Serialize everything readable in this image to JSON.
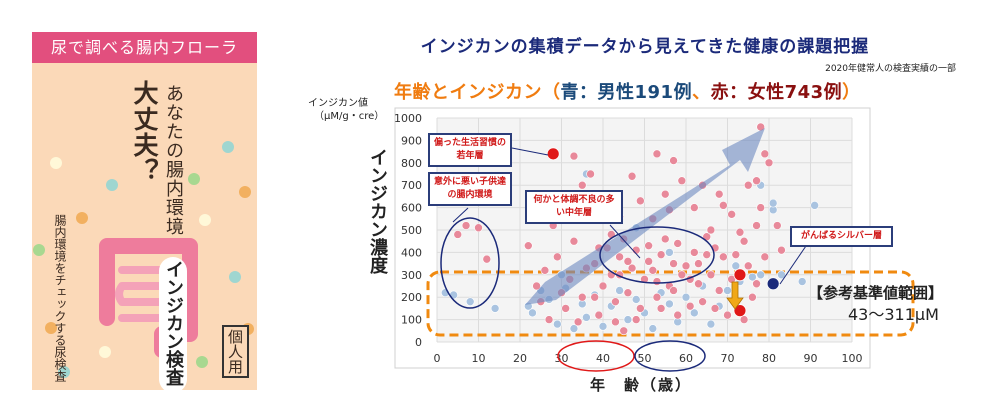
{
  "package": {
    "header": "尿で調べる腸内フローラ",
    "question_main": "大丈夫？",
    "question_sub": "あなたの腸内環境",
    "side_text": "腸内環境をチェックする尿検査",
    "product_name": "インジカン検査",
    "badge": "個人用",
    "colors": {
      "header": "#e24f7e",
      "body": "#fbd9b8",
      "intestine": "#ee7c9c"
    }
  },
  "main_title": "インジカンの集積データから見えてきた健康の課題把握",
  "note": "2020年健常人の検査実績の一部",
  "subtitle": {
    "prefix": "年齢とインジカン（",
    "male": "青：男性191例",
    "sep": "、",
    "female": "赤：女性743例",
    "suffix": "）"
  },
  "reference": {
    "label": "【参考基準値範囲】",
    "range": "43〜311μM"
  },
  "annotations": {
    "young": "偏った生活習慣の若年層",
    "children": "意外に悪い子供達の腸内環境",
    "middle": "何かと体調不良の多い中年層",
    "silver": "がんばるシルバー層"
  },
  "chart_data": {
    "type": "scatter",
    "title": "年齢とインジカン（青：男性191例、赤：女性743例）",
    "xlabel": "年　齢（歳）",
    "ylabel": "インジカン濃度",
    "ylabel_unit_line1": "インジカン値",
    "ylabel_unit_line2": "（μM/g・cre）",
    "xlim": [
      0,
      100
    ],
    "ylim": [
      0,
      1000
    ],
    "x_ticks": [
      "0",
      "10",
      "20",
      "30",
      "40",
      "50",
      "60",
      "70",
      "80",
      "90",
      "100"
    ],
    "y_ticks": [
      "0",
      "100",
      "200",
      "300",
      "400",
      "500",
      "600",
      "700",
      "800",
      "900",
      "1000"
    ],
    "grid": true,
    "reference_range": [
      43,
      311
    ],
    "series": [
      {
        "name": "女性",
        "color": "#e8899a",
        "points": [
          [
            5,
            480
          ],
          [
            7,
            520
          ],
          [
            10,
            510
          ],
          [
            12,
            370
          ],
          [
            22,
            430
          ],
          [
            24,
            250
          ],
          [
            25,
            180
          ],
          [
            26,
            320
          ],
          [
            27,
            100
          ],
          [
            28,
            520
          ],
          [
            29,
            380
          ],
          [
            30,
            220
          ],
          [
            31,
            150
          ],
          [
            32,
            280
          ],
          [
            33,
            450
          ],
          [
            34,
            90
          ],
          [
            35,
            200
          ],
          [
            33,
            830
          ],
          [
            35,
            700
          ],
          [
            37,
            750
          ],
          [
            38,
            350
          ],
          [
            39,
            120
          ],
          [
            40,
            250
          ],
          [
            41,
            420
          ],
          [
            42,
            300
          ],
          [
            43,
            180
          ],
          [
            44,
            380
          ],
          [
            45,
            460
          ],
          [
            46,
            220
          ],
          [
            47,
            330
          ],
          [
            48,
            410
          ],
          [
            49,
            150
          ],
          [
            50,
            280
          ],
          [
            41,
            650
          ],
          [
            44,
            560
          ],
          [
            47,
            740
          ],
          [
            49,
            630
          ],
          [
            46,
            360
          ],
          [
            43,
            90
          ],
          [
            45,
            50
          ],
          [
            42,
            480
          ],
          [
            48,
            100
          ],
          [
            51,
            430
          ],
          [
            52,
            320
          ],
          [
            53,
            200
          ],
          [
            54,
            390
          ],
          [
            55,
            460
          ],
          [
            56,
            250
          ],
          [
            57,
            350
          ],
          [
            58,
            120
          ],
          [
            59,
            300
          ],
          [
            52,
            550
          ],
          [
            55,
            660
          ],
          [
            57,
            810
          ],
          [
            59,
            720
          ],
          [
            53,
            840
          ],
          [
            56,
            590
          ],
          [
            58,
            440
          ],
          [
            61,
            280
          ],
          [
            62,
            400
          ],
          [
            63,
            350
          ],
          [
            64,
            180
          ],
          [
            65,
            470
          ],
          [
            66,
            300
          ],
          [
            67,
            420
          ],
          [
            68,
            230
          ],
          [
            69,
            380
          ],
          [
            70,
            120
          ],
          [
            62,
            600
          ],
          [
            64,
            700
          ],
          [
            66,
            500
          ],
          [
            68,
            660
          ],
          [
            69,
            610
          ],
          [
            61,
            160
          ],
          [
            71,
            280
          ],
          [
            72,
            390
          ],
          [
            74,
            450
          ],
          [
            75,
            340
          ],
          [
            76,
            200
          ],
          [
            77,
            520
          ],
          [
            78,
            600
          ],
          [
            79,
            380
          ],
          [
            75,
            700
          ],
          [
            77,
            720
          ],
          [
            78,
            960
          ],
          [
            79,
            840
          ],
          [
            80,
            800
          ],
          [
            82,
            520
          ],
          [
            83,
            410
          ],
          [
            74,
            100
          ],
          [
            77,
            260
          ],
          [
            71,
            570
          ],
          [
            73,
            490
          ],
          [
            36,
            330
          ],
          [
            39,
            420
          ],
          [
            44,
            300
          ],
          [
            51,
            360
          ],
          [
            54,
            150
          ],
          [
            60,
            340
          ],
          [
            63,
            260
          ],
          [
            67,
            150
          ],
          [
            38,
            200
          ],
          [
            53,
            270
          ],
          [
            57,
            230
          ],
          [
            65,
            390
          ]
        ]
      },
      {
        "name": "男性",
        "color": "#a9c3e0",
        "points": [
          [
            2,
            220
          ],
          [
            4,
            210
          ],
          [
            8,
            180
          ],
          [
            14,
            150
          ],
          [
            22,
            160
          ],
          [
            23,
            130
          ],
          [
            25,
            230
          ],
          [
            27,
            190
          ],
          [
            29,
            80
          ],
          [
            30,
            300
          ],
          [
            31,
            240
          ],
          [
            33,
            60
          ],
          [
            35,
            170
          ],
          [
            36,
            110
          ],
          [
            38,
            210
          ],
          [
            40,
            70
          ],
          [
            42,
            160
          ],
          [
            44,
            230
          ],
          [
            46,
            100
          ],
          [
            48,
            190
          ],
          [
            50,
            130
          ],
          [
            52,
            60
          ],
          [
            54,
            220
          ],
          [
            56,
            170
          ],
          [
            58,
            90
          ],
          [
            60,
            200
          ],
          [
            62,
            130
          ],
          [
            64,
            250
          ],
          [
            66,
            80
          ],
          [
            68,
            160
          ],
          [
            70,
            230
          ],
          [
            72,
            340
          ],
          [
            76,
            290
          ],
          [
            78,
            300
          ],
          [
            81,
            590
          ],
          [
            81,
            620
          ],
          [
            83,
            300
          ],
          [
            88,
            270
          ],
          [
            91,
            610
          ],
          [
            36,
            750
          ],
          [
            78,
            700
          ],
          [
            48,
            510
          ],
          [
            56,
            400
          ],
          [
            73,
            270
          ]
        ]
      }
    ],
    "highlighted_points": [
      {
        "x": 28,
        "y": 840,
        "color": "#e01818"
      },
      {
        "x": 73,
        "y": 300,
        "color": "#e01818"
      },
      {
        "x": 73,
        "y": 140,
        "color": "#e01818"
      },
      {
        "x": 81,
        "y": 260,
        "color": "#1b2a7a"
      }
    ]
  }
}
